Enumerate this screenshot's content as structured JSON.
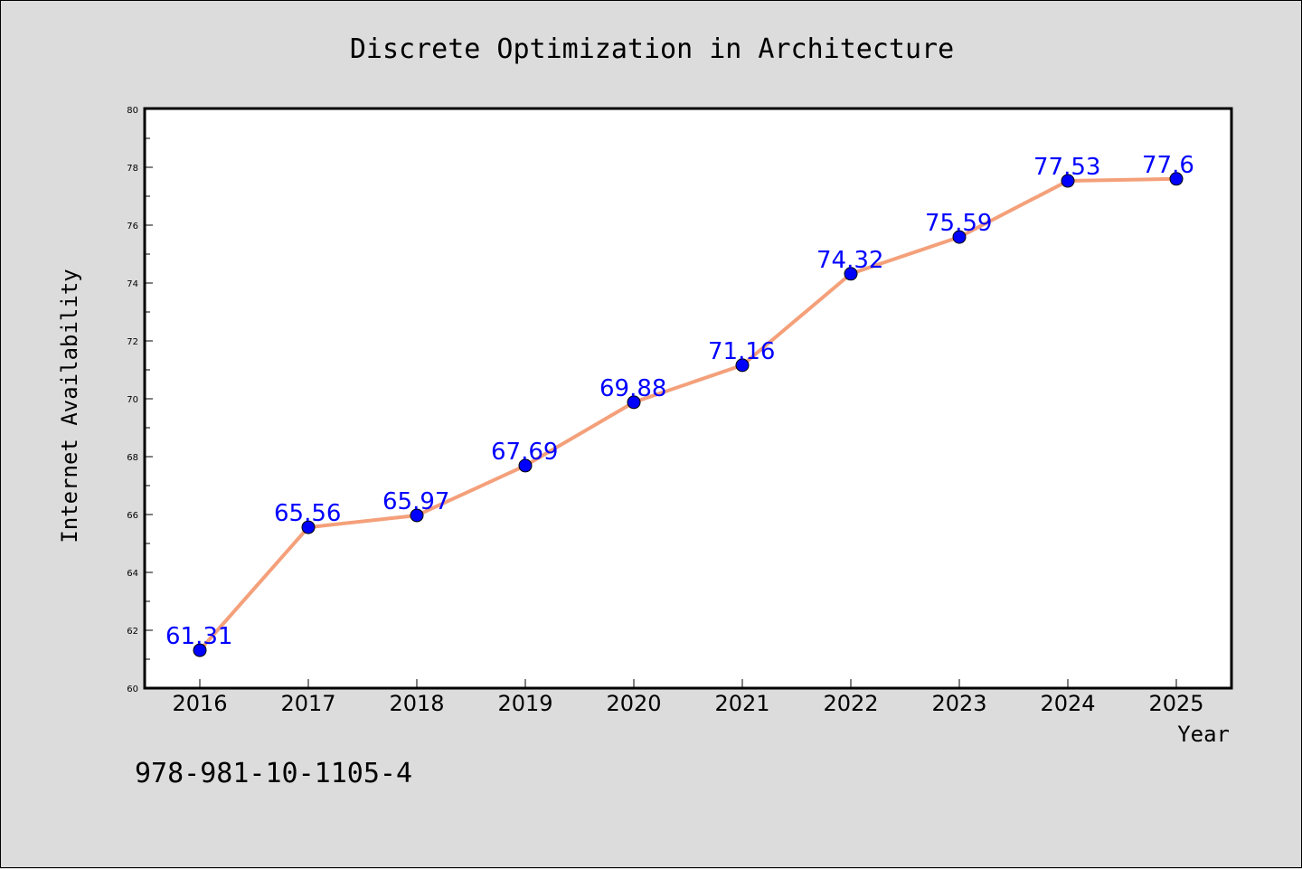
{
  "chart_data": {
    "type": "line",
    "title": "Discrete Optimization in Architecture",
    "xlabel": "Year",
    "ylabel": "Internet Availability",
    "categories": [
      "2016",
      "2017",
      "2018",
      "2019",
      "2020",
      "2021",
      "2022",
      "2023",
      "2024",
      "2025"
    ],
    "series": [
      {
        "values": [
          61.31,
          65.56,
          65.97,
          67.69,
          69.88,
          71.16,
          74.32,
          75.59,
          77.53,
          77.6
        ],
        "value_labels": [
          "61.31",
          "65.56",
          "65.97",
          "67.69",
          "69.88",
          "71.16",
          "74.32",
          "75.59",
          "77.53",
          "77.6"
        ],
        "line_color": "#f4a07a",
        "marker_color": "#0000ff",
        "label_color": "#0000ff"
      }
    ],
    "ylim": [
      60,
      80
    ],
    "yticks": [
      "60",
      "62",
      "64",
      "66",
      "68",
      "70",
      "72",
      "74",
      "76",
      "78",
      "80"
    ],
    "grid": false,
    "legend": "none"
  },
  "annotation": {
    "isbn": "978-981-10-1105-4"
  },
  "colors": {
    "background": "#dcdcdc",
    "plot_area": "#ffffff"
  }
}
